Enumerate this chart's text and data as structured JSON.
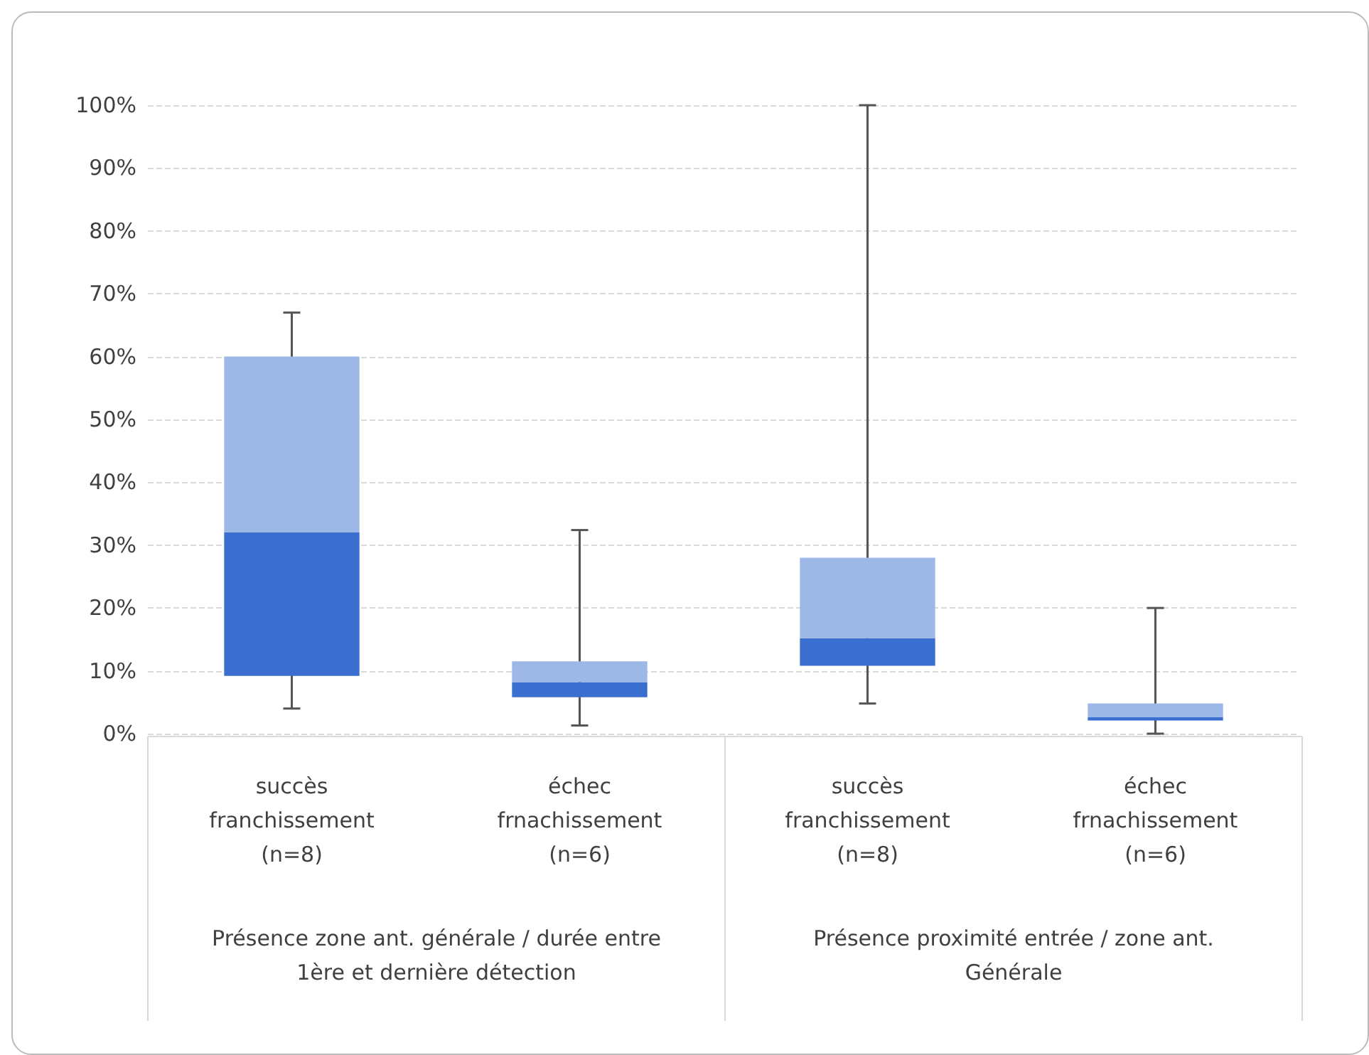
{
  "chart_data": {
    "type": "box",
    "categories": [
      "succès\nfranchissement\n(n=8)",
      "échec\nfrnachissement\n(n=6)",
      "succès\nfranchissement\n(n=8)",
      "échec\nfrnachissement\n(n=6)"
    ],
    "series": [
      {
        "color": "#3b6fcf",
        "boxes": [
          {
            "low": 4,
            "q1": 9.2,
            "median": 32,
            "q3": 60,
            "high": 67
          },
          {
            "low": 1.3,
            "q1": 5.8,
            "median": 8.2,
            "q3": 11.5,
            "high": 32.4
          },
          {
            "low": 4.8,
            "q1": 10.8,
            "median": 15.2,
            "q3": 28,
            "high": 100
          },
          {
            "low": 0,
            "q1": 2.1,
            "median": 2.6,
            "q3": 4.8,
            "high": 20
          }
        ]
      }
    ],
    "annotations": [
      "Présence zone ant. générale / durée entre\n1ère et dernière détection",
      "Présence proximité entrée / zone ant.\nGénérale"
    ],
    "ylim": [
      0,
      100
    ],
    "yticks": [
      {
        "value": 0,
        "label": "0%"
      },
      {
        "value": 10,
        "label": "10%"
      },
      {
        "value": 20,
        "label": "20%"
      },
      {
        "value": 30,
        "label": "30%"
      },
      {
        "value": 40,
        "label": "40%"
      },
      {
        "value": 50,
        "label": "50%"
      },
      {
        "value": 60,
        "label": "60%"
      },
      {
        "value": 70,
        "label": "70%"
      },
      {
        "value": 80,
        "label": "80%"
      },
      {
        "value": 90,
        "label": "90%"
      },
      {
        "value": 100,
        "label": "100%"
      }
    ],
    "grid": "y"
  }
}
